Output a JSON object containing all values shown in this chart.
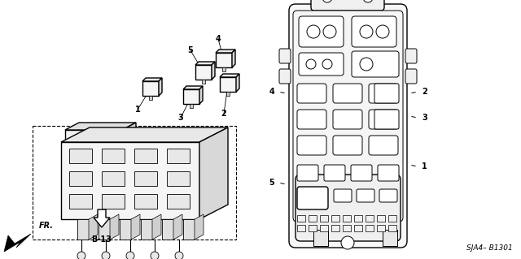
{
  "bg_color": "#ffffff",
  "lc": "#000000",
  "fig_width": 6.4,
  "fig_height": 3.19,
  "dpi": 100,
  "part_ref": "SJA4– B1301"
}
